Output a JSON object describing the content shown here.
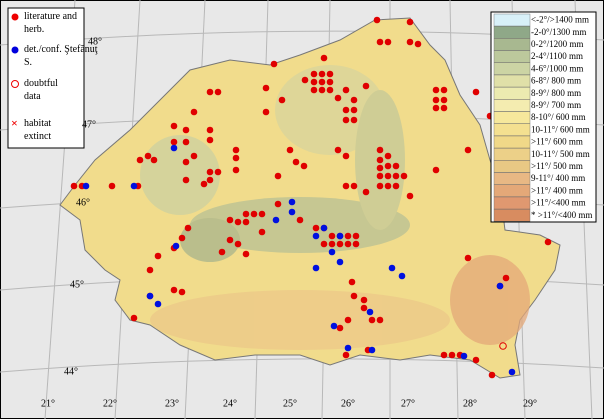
{
  "legend": [
    {
      "label": "literature and herb."
    },
    {
      "label": "det./conf. Ştefănuţ S."
    },
    {
      "label": "doubtful data"
    },
    {
      "label": "habitat extinct"
    }
  ],
  "climate_legend": [
    {
      "label": "<-2°/>1400 mm",
      "color": "#d8f0f8"
    },
    {
      "label": "-2-0°/1300 mm",
      "color": "#8fa888"
    },
    {
      "label": "0-2°/1200 mm",
      "color": "#a8b890"
    },
    {
      "label": "2-4°/1100 mm",
      "color": "#bcc89c"
    },
    {
      "label": "4-6°/1000 mm",
      "color": "#ccd4a4"
    },
    {
      "label": "6-8°/ 800 mm",
      "color": "#e0e0a8"
    },
    {
      "label": "8-9°/ 800 mm",
      "color": "#ecebb0"
    },
    {
      "label": "8-9°/ 700 mm",
      "color": "#f4ecb0"
    },
    {
      "label": "8-10°/ 600 mm",
      "color": "#f6e89c"
    },
    {
      "label": "10-11°/ 600 mm",
      "color": "#f4e090"
    },
    {
      "label": ">11°/ 600 mm",
      "color": "#f0d888"
    },
    {
      "label": "10-11°/ 500 mm",
      "color": "#ecd088"
    },
    {
      "label": ">11°/ 500 mm",
      "color": "#e8c884"
    },
    {
      "label": "9-11°/ 400 mm",
      "color": "#e8b884"
    },
    {
      "label": ">11°/ 400 mm",
      "color": "#e4a878"
    },
    {
      "label": ">11°/<400 mm",
      "color": "#e09870"
    },
    {
      "label": "* >11°/<400 mm",
      "color": "#d88c60"
    }
  ],
  "latitudes": [
    "48°",
    "47°",
    "46°",
    "45°",
    "44°"
  ],
  "longitudes": [
    "21°",
    "22°",
    "23°",
    "24°",
    "25°",
    "26°",
    "27°",
    "28°",
    "29°"
  ]
}
